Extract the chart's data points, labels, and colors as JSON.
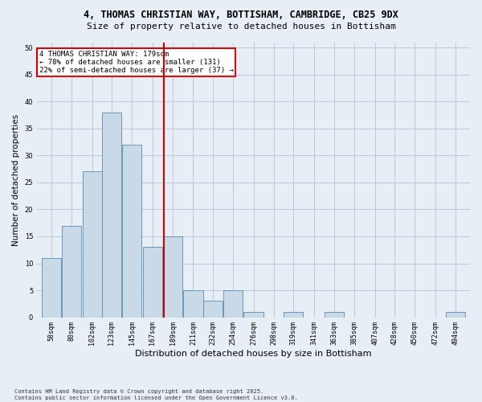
{
  "title_line1": "4, THOMAS CHRISTIAN WAY, BOTTISHAM, CAMBRIDGE, CB25 9DX",
  "title_line2": "Size of property relative to detached houses in Bottisham",
  "xlabel": "Distribution of detached houses by size in Bottisham",
  "ylabel": "Number of detached properties",
  "bins": [
    58,
    80,
    102,
    123,
    145,
    167,
    189,
    211,
    232,
    254,
    276,
    298,
    319,
    341,
    363,
    385,
    407,
    428,
    450,
    472,
    494
  ],
  "counts": [
    11,
    17,
    27,
    38,
    32,
    13,
    15,
    5,
    3,
    5,
    1,
    0,
    1,
    0,
    1,
    0,
    0,
    0,
    0,
    0,
    1
  ],
  "bar_color": "#c9d9e8",
  "bar_edge_color": "#5a8ab0",
  "grid_color": "#b0c4d8",
  "background_color": "#e8eef5",
  "vline_x": 179,
  "vline_color": "#cc0000",
  "annotation_text": "4 THOMAS CHRISTIAN WAY: 179sqm\n← 78% of detached houses are smaller (131)\n22% of semi-detached houses are larger (37) →",
  "annotation_box_color": "#ffffff",
  "annotation_box_edge": "#cc0000",
  "ylim": [
    0,
    51
  ],
  "yticks": [
    0,
    5,
    10,
    15,
    20,
    25,
    30,
    35,
    40,
    45,
    50
  ],
  "footnote": "Contains HM Land Registry data © Crown copyright and database right 2025.\nContains public sector information licensed under the Open Government Licence v3.0.",
  "title1_fontsize": 8.5,
  "title2_fontsize": 8.0,
  "xlabel_fontsize": 8.0,
  "ylabel_fontsize": 7.5,
  "tick_fontsize": 6.0,
  "annot_fontsize": 6.5,
  "footnote_fontsize": 5.0
}
